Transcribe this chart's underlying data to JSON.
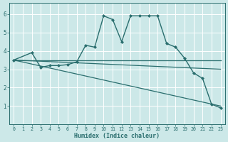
{
  "xlabel": "Humidex (Indice chaleur)",
  "bg_color": "#cce8e8",
  "line_color": "#2a6e6e",
  "grid_color": "#ffffff",
  "xlim": [
    -0.5,
    23.5
  ],
  "ylim": [
    0,
    6.6
  ],
  "yticks": [
    1,
    2,
    3,
    4,
    5,
    6
  ],
  "xticks": [
    0,
    1,
    2,
    3,
    4,
    5,
    6,
    7,
    8,
    9,
    10,
    11,
    12,
    13,
    14,
    15,
    16,
    17,
    18,
    19,
    20,
    21,
    22,
    23
  ],
  "series": [
    {
      "x": [
        0,
        2,
        3,
        4,
        5,
        6,
        7,
        8,
        9,
        10,
        11,
        12,
        13,
        14,
        15,
        16,
        17,
        18,
        19,
        20,
        21,
        22,
        23
      ],
      "y": [
        3.5,
        3.9,
        3.1,
        3.2,
        3.2,
        3.25,
        3.4,
        4.3,
        4.2,
        5.9,
        5.7,
        4.5,
        5.9,
        5.9,
        5.9,
        5.9,
        4.4,
        4.2,
        3.6,
        2.8,
        2.5,
        1.1,
        0.9
      ],
      "marker": "D",
      "markersize": 2.0,
      "linewidth": 1.0
    },
    {
      "x": [
        0,
        23
      ],
      "y": [
        3.5,
        1.0
      ],
      "marker": null,
      "linewidth": 0.9
    },
    {
      "x": [
        0,
        23
      ],
      "y": [
        3.5,
        3.0
      ],
      "marker": null,
      "linewidth": 0.9
    },
    {
      "x": [
        0,
        23
      ],
      "y": [
        3.5,
        3.5
      ],
      "marker": null,
      "linewidth": 0.9
    }
  ]
}
